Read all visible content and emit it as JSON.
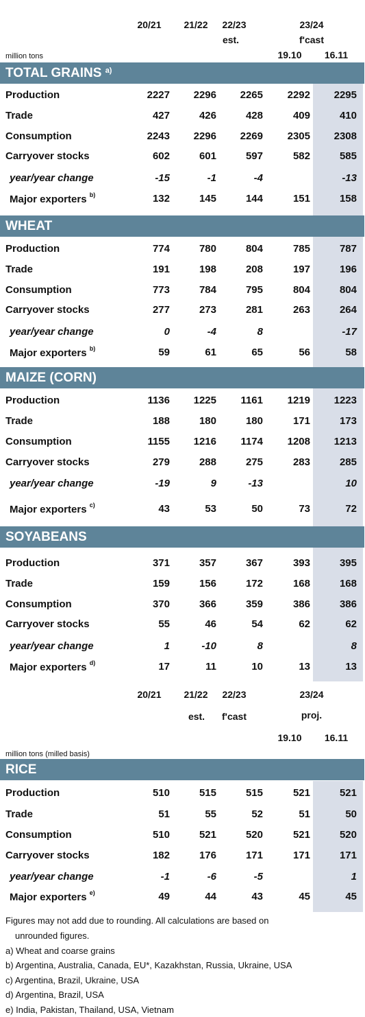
{
  "header_top": {
    "years": [
      "20/21",
      "21/22",
      "22/23",
      "23/24"
    ],
    "est": "est.",
    "fcast": "f'cast",
    "dates": [
      "19.10",
      "16.11"
    ],
    "unit": "million tons"
  },
  "sections_top": [
    {
      "title": "TOTAL GRAINS",
      "sup": "a)",
      "rows": [
        {
          "label": "Production",
          "values": [
            "2227",
            "2296",
            "2265",
            "2292",
            "2295"
          ]
        },
        {
          "label": "Trade",
          "values": [
            "427",
            "426",
            "428",
            "409",
            "410"
          ]
        },
        {
          "label": "Consumption",
          "values": [
            "2243",
            "2296",
            "2269",
            "2305",
            "2308"
          ]
        },
        {
          "label": "Carryover stocks",
          "values": [
            "602",
            "601",
            "597",
            "582",
            "585"
          ]
        },
        {
          "label": "year/year change",
          "values": [
            "-15",
            "-1",
            "-4",
            "",
            "-13"
          ]
        },
        {
          "label": "Major exporters",
          "sup": "b)",
          "values": [
            "132",
            "145",
            "144",
            "151",
            "158"
          ]
        }
      ]
    },
    {
      "title": "WHEAT",
      "sup": "",
      "rows": [
        {
          "label": "Production",
          "values": [
            "774",
            "780",
            "804",
            "785",
            "787"
          ]
        },
        {
          "label": "Trade",
          "values": [
            "191",
            "198",
            "208",
            "197",
            "196"
          ]
        },
        {
          "label": "Consumption",
          "values": [
            "773",
            "784",
            "795",
            "804",
            "804"
          ]
        },
        {
          "label": "Carryover stocks",
          "values": [
            "277",
            "273",
            "281",
            "263",
            "264"
          ]
        },
        {
          "label": "year/year change",
          "values": [
            "0",
            "-4",
            "8",
            "",
            "-17"
          ]
        },
        {
          "label": "Major exporters",
          "sup": "b)",
          "values": [
            "59",
            "61",
            "65",
            "56",
            "58"
          ]
        }
      ]
    },
    {
      "title": "MAIZE (CORN)",
      "sup": "",
      "rows": [
        {
          "label": "Production",
          "values": [
            "1136",
            "1225",
            "1161",
            "1219",
            "1223"
          ]
        },
        {
          "label": "Trade",
          "values": [
            "188",
            "180",
            "180",
            "171",
            "173"
          ]
        },
        {
          "label": "Consumption",
          "values": [
            "1155",
            "1216",
            "1174",
            "1208",
            "1213"
          ]
        },
        {
          "label": "Carryover stocks",
          "values": [
            "279",
            "288",
            "275",
            "283",
            "285"
          ]
        },
        {
          "label": "year/year change",
          "values": [
            "-19",
            "9",
            "-13",
            "",
            "10"
          ]
        },
        {
          "label": "Major exporters",
          "sup": "c)",
          "values": [
            "43",
            "53",
            "50",
            "73",
            "72"
          ]
        }
      ]
    },
    {
      "title": "SOYABEANS",
      "sup": "",
      "rows": [
        {
          "label": "Production",
          "values": [
            "371",
            "357",
            "367",
            "393",
            "395"
          ]
        },
        {
          "label": "Trade",
          "values": [
            "159",
            "156",
            "172",
            "168",
            "168"
          ]
        },
        {
          "label": "Consumption",
          "values": [
            "370",
            "366",
            "359",
            "386",
            "386"
          ]
        },
        {
          "label": "Carryover stocks",
          "values": [
            "55",
            "46",
            "54",
            "62",
            "62"
          ]
        },
        {
          "label": "year/year change",
          "values": [
            "1",
            "-10",
            "8",
            "",
            "8"
          ]
        },
        {
          "label": "Major exporters",
          "sup": "d)",
          "values": [
            "17",
            "11",
            "10",
            "13",
            "13"
          ]
        }
      ]
    }
  ],
  "header_rice": {
    "years": [
      "20/21",
      "21/22",
      "22/23",
      "23/24"
    ],
    "est": "est.",
    "fcast": "f'cast",
    "proj": "proj.",
    "dates": [
      "19.10",
      "16.11"
    ],
    "unit": "million tons (milled basis)"
  },
  "section_rice": {
    "title": "RICE",
    "sup": "",
    "rows": [
      {
        "label": "Production",
        "values": [
          "510",
          "515",
          "515",
          "521",
          "521"
        ]
      },
      {
        "label": "Trade",
        "values": [
          "51",
          "55",
          "52",
          "51",
          "50"
        ]
      },
      {
        "label": "Consumption",
        "values": [
          "510",
          "521",
          "520",
          "521",
          "520"
        ]
      },
      {
        "label": "Carryover stocks",
        "values": [
          "182",
          "176",
          "171",
          "171",
          "171"
        ]
      },
      {
        "label": "year/year change",
        "values": [
          "-1",
          "-6",
          "-5",
          "",
          "1"
        ]
      },
      {
        "label": "Major exporters",
        "sup": "e)",
        "values": [
          "49",
          "44",
          "43",
          "45",
          "45"
        ]
      }
    ]
  },
  "notes": [
    "Figures may not add due to rounding. All calculations are based on",
    "unrounded figures.",
    "a) Wheat and coarse grains",
    "b) Argentina, Australia, Canada, EU*, Kazakhstan, Russia, Ukraine, USA",
    "c) Argentina, Brazil, Ukraine, USA",
    "d) Argentina, Brazil, USA",
    "e) India, Pakistan, Thailand, USA, Vietnam"
  ],
  "colors": {
    "band": "#5e8499",
    "shade": "#d9dee8"
  }
}
